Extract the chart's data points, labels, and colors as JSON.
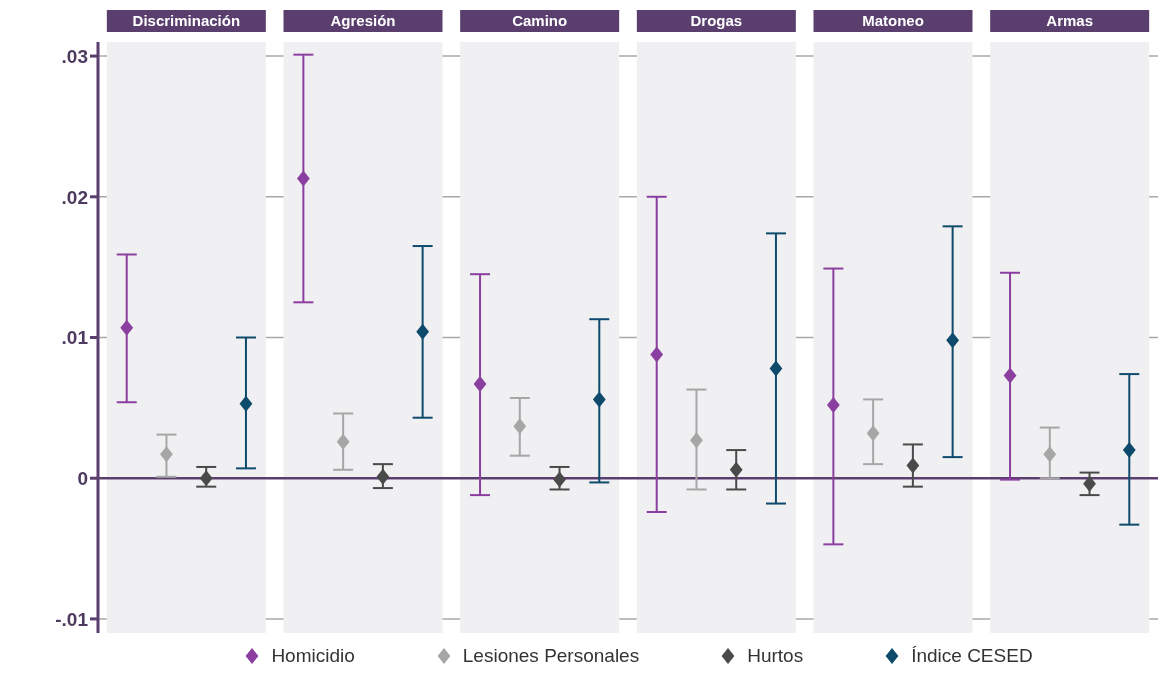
{
  "chart_data": {
    "type": "scatter",
    "categories": [
      "Discriminación",
      "Agresión",
      "Camino",
      "Drogas",
      "Matoneo",
      "Armas"
    ],
    "ylim": [
      -0.011,
      0.031
    ],
    "yticks": [
      {
        "value": -0.01,
        "label": "-.01"
      },
      {
        "value": 0,
        "label": "0"
      },
      {
        "value": 0.01,
        "label": ".01"
      },
      {
        "value": 0.02,
        "label": ".02"
      },
      {
        "value": 0.03,
        "label": ".03"
      }
    ],
    "grid": true,
    "marker": "diamond",
    "legend": "bottom",
    "ref_lines": [
      {
        "axis": "y",
        "value": 0,
        "color": "#5a3f6e"
      }
    ],
    "series": [
      {
        "name": "Homicidio",
        "color": "#8b3fa0",
        "values": [
          0.0107,
          0.0213,
          0.0067,
          0.0088,
          0.0052,
          0.0073
        ],
        "errors": [
          [
            0.0054,
            0.0159
          ],
          [
            0.0125,
            0.0301
          ],
          [
            -0.0012,
            0.0145
          ],
          [
            -0.0024,
            0.02
          ],
          [
            -0.0047,
            0.0149
          ],
          [
            -0.0001,
            0.0146
          ]
        ]
      },
      {
        "name": "Lesiones Personales",
        "color": "#a6a6a6",
        "values": [
          0.0017,
          0.0026,
          0.0037,
          0.0027,
          0.0032,
          0.0017
        ],
        "errors": [
          [
            0.0001,
            0.0031
          ],
          [
            0.0006,
            0.0046
          ],
          [
            0.0016,
            0.0057
          ],
          [
            -0.0008,
            0.0063
          ],
          [
            0.001,
            0.0056
          ],
          [
            0,
            0.0036
          ]
        ]
      },
      {
        "name": "Hurtos",
        "color": "#4a4a4a",
        "values": [
          0,
          0.0001,
          -0.0001,
          0.0006,
          0.0009,
          -0.0004
        ],
        "errors": [
          [
            -0.0006,
            0.0008
          ],
          [
            -0.0007,
            0.001
          ],
          [
            -0.0008,
            0.0008
          ],
          [
            -0.0008,
            0.002
          ],
          [
            -0.0006,
            0.0024
          ],
          [
            -0.0012,
            0.0004
          ]
        ]
      },
      {
        "name": "Índice CESED",
        "color": "#0e4a6c",
        "values": [
          0.0053,
          0.0104,
          0.0056,
          0.0078,
          0.0098,
          0.002
        ],
        "errors": [
          [
            0.0007,
            0.01
          ],
          [
            0.0043,
            0.0165
          ],
          [
            -0.0003,
            0.0113
          ],
          [
            -0.0018,
            0.0174
          ],
          [
            0.0015,
            0.0179
          ],
          [
            -0.0033,
            0.0074
          ]
        ]
      }
    ]
  }
}
